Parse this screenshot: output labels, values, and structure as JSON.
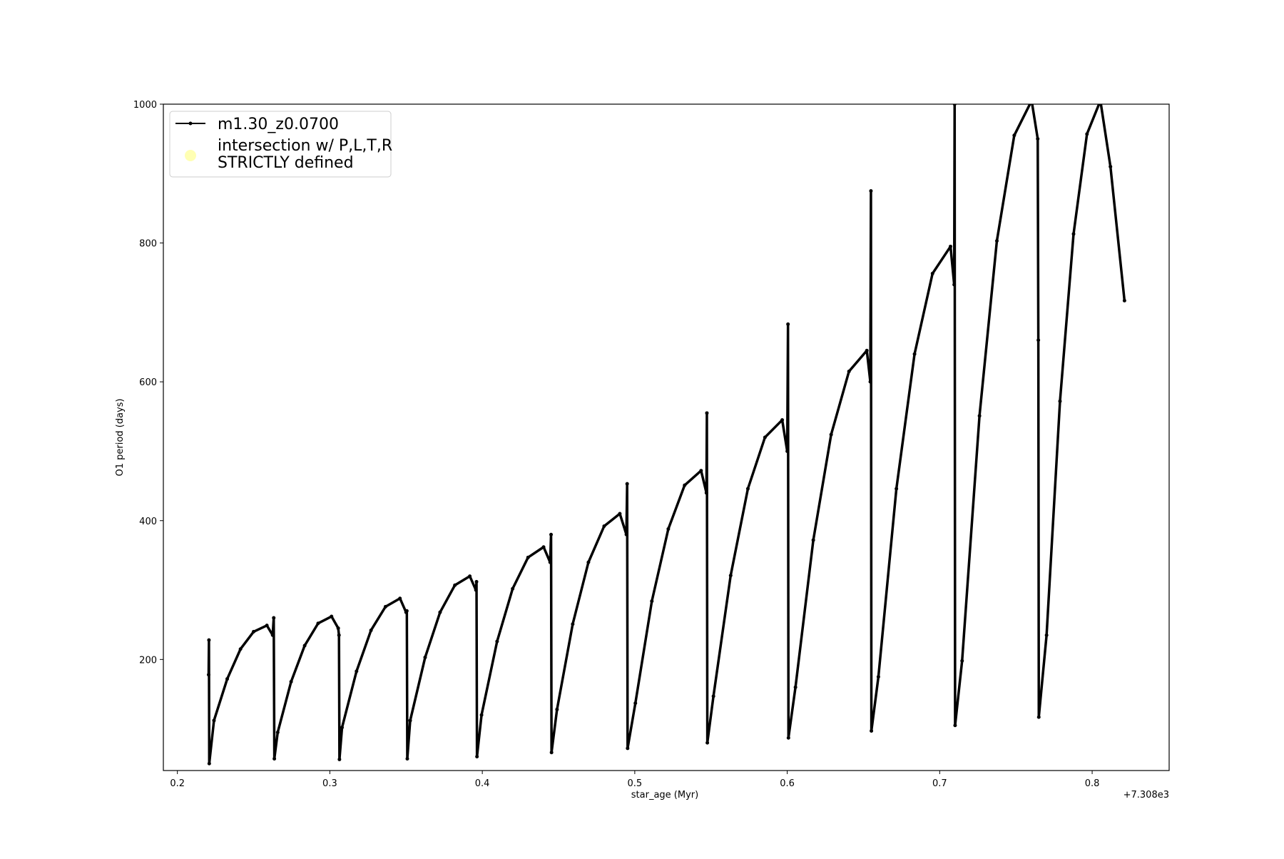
{
  "chart_data": {
    "type": "line",
    "xlabel": "star_age (Myr)",
    "ylabel": "O1 period (days)",
    "x_offset_label": "+7.308e3",
    "xlim": [
      0.1908,
      0.8505
    ],
    "ylim": [
      40,
      1000
    ],
    "xticks": [
      0.2,
      0.3,
      0.4,
      0.5,
      0.6,
      0.7,
      0.8
    ],
    "yticks": [
      200,
      400,
      600,
      800,
      1000
    ],
    "grid": false,
    "legend": "upper left",
    "series": [
      {
        "name": "m1.30_z0.0700",
        "color": "#000000",
        "marker": "dot",
        "x": [
          0.2205,
          0.2207,
          0.2209,
          0.224,
          0.2327,
          0.2414,
          0.25,
          0.2587,
          0.2625,
          0.2632,
          0.2636,
          0.2658,
          0.2746,
          0.2835,
          0.2923,
          0.3011,
          0.3055,
          0.306,
          0.3063,
          0.308,
          0.3175,
          0.327,
          0.3365,
          0.346,
          0.35,
          0.3505,
          0.3508,
          0.3527,
          0.3625,
          0.3723,
          0.382,
          0.3918,
          0.3958,
          0.3962,
          0.3965,
          0.3995,
          0.4097,
          0.4199,
          0.43,
          0.4402,
          0.4445,
          0.4451,
          0.4454,
          0.449,
          0.4593,
          0.4696,
          0.4799,
          0.4902,
          0.4945,
          0.495,
          0.4953,
          0.5004,
          0.5112,
          0.522,
          0.5327,
          0.5435,
          0.547,
          0.5473,
          0.5476,
          0.5516,
          0.5629,
          0.5742,
          0.5854,
          0.5967,
          0.6,
          0.6005,
          0.6008,
          0.6054,
          0.6171,
          0.6288,
          0.6405,
          0.6522,
          0.6545,
          0.6549,
          0.6552,
          0.6598,
          0.6716,
          0.6835,
          0.6953,
          0.7071,
          0.7095,
          0.7098,
          0.7101,
          0.7147,
          0.7261,
          0.7375,
          0.7489,
          0.7603,
          0.7643,
          0.7647,
          0.765,
          0.7701,
          0.7789,
          0.7878,
          0.7966,
          0.8054,
          0.812,
          0.8212
        ],
        "values": [
          178,
          228,
          50,
          112,
          172,
          215,
          240,
          249,
          235,
          260,
          57,
          95,
          168,
          220,
          252,
          262,
          245,
          235,
          56,
          102,
          183,
          242,
          276,
          288,
          268,
          270,
          57,
          112,
          203,
          268,
          307,
          320,
          300,
          312,
          60,
          120,
          226,
          302,
          347,
          362,
          340,
          380,
          66,
          128,
          251,
          340,
          392,
          410,
          380,
          453,
          72,
          137,
          284,
          388,
          451,
          472,
          440,
          555,
          80,
          147,
          321,
          446,
          520,
          545,
          500,
          683,
          87,
          160,
          372,
          524,
          615,
          645,
          600,
          875,
          97,
          175,
          446,
          640,
          756,
          795,
          740,
          1000,
          105,
          198,
          551,
          803,
          955,
          1005,
          950,
          660,
          117,
          235,
          572,
          813,
          957,
          1005,
          910,
          717
        ]
      },
      {
        "name": "intersection w/ P,L,T,R\nSTRICTLY defined",
        "color": "#ffffb3",
        "marker": "circle",
        "x": [],
        "values": []
      }
    ]
  }
}
